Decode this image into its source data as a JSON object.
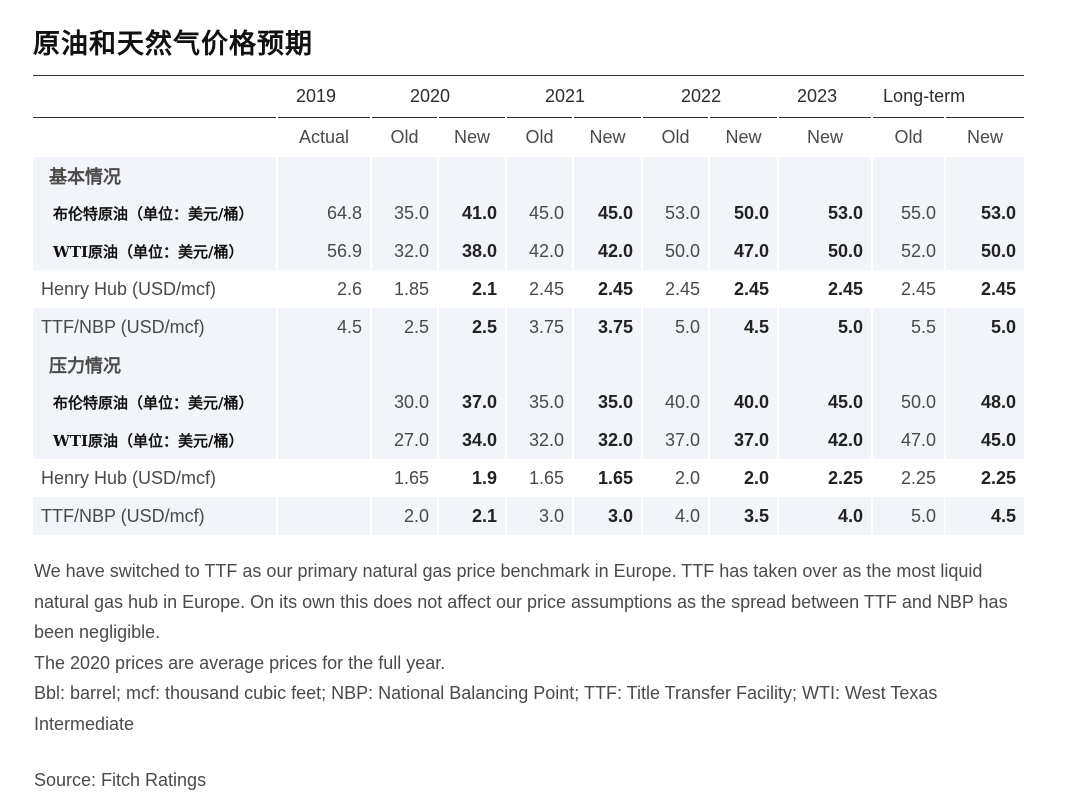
{
  "title": "原油和天然气价格预期",
  "years": [
    "2019",
    "2020",
    "2021",
    "2022",
    "2023",
    "Long-term"
  ],
  "subheaders": [
    "Actual",
    "Old",
    "New",
    "Old",
    "New",
    "Old",
    "New",
    "New",
    "Old",
    "New"
  ],
  "sections": [
    {
      "label": "基本情况",
      "rows": [
        {
          "label": "布伦特原油（单位：美元/桶）",
          "values": [
            "64.8",
            "35.0",
            "41.0",
            "45.0",
            "45.0",
            "53.0",
            "50.0",
            "53.0",
            "55.0",
            "53.0"
          ]
        },
        {
          "label": "WTI原油（单位：美元/桶）",
          "values": [
            "56.9",
            "32.0",
            "38.0",
            "42.0",
            "42.0",
            "50.0",
            "47.0",
            "50.0",
            "52.0",
            "50.0"
          ]
        },
        {
          "label": "Henry Hub (USD/mcf)",
          "values": [
            "2.6",
            "1.85",
            "2.1",
            "2.45",
            "2.45",
            "2.45",
            "2.45",
            "2.45",
            "2.45",
            "2.45"
          ]
        },
        {
          "label": "TTF/NBP (USD/mcf)",
          "values": [
            "4.5",
            "2.5",
            "2.5",
            "3.75",
            "3.75",
            "5.0",
            "4.5",
            "5.0",
            "5.5",
            "5.0"
          ]
        }
      ]
    },
    {
      "label": "压力情况",
      "rows": [
        {
          "label": "布伦特原油（单位：美元/桶）",
          "values": [
            "",
            "30.0",
            "37.0",
            "35.0",
            "35.0",
            "40.0",
            "40.0",
            "45.0",
            "50.0",
            "48.0"
          ]
        },
        {
          "label": "WTI原油（单位：美元/桶）",
          "values": [
            "",
            "27.0",
            "34.0",
            "32.0",
            "32.0",
            "37.0",
            "37.0",
            "42.0",
            "47.0",
            "45.0"
          ]
        },
        {
          "label": "Henry Hub (USD/mcf)",
          "values": [
            "",
            "1.65",
            "1.9",
            "1.65",
            "1.65",
            "2.0",
            "2.0",
            "2.25",
            "2.25",
            "2.25"
          ]
        },
        {
          "label": "TTF/NBP (USD/mcf)",
          "values": [
            "",
            "2.0",
            "2.1",
            "3.0",
            "3.0",
            "4.0",
            "3.5",
            "4.0",
            "5.0",
            "4.5"
          ]
        }
      ]
    }
  ],
  "notes": [
    "We have  switched to TTF as our primary natural gas price benchmark in Europe. TTF has taken over as the most liquid natural gas hub in Europe. On its own this does not affect our price assumptions as the spread between TTF and NBP has been negligible.",
    "The 2020 prices are average prices for the full year.",
    "Bbl: barrel; mcf: thousand cubic feet; NBP: National Balancing Point; TTF: Title Transfer Facility; WTI: West Texas Intermediate"
  ],
  "source": "Source: Fitch Ratings"
}
